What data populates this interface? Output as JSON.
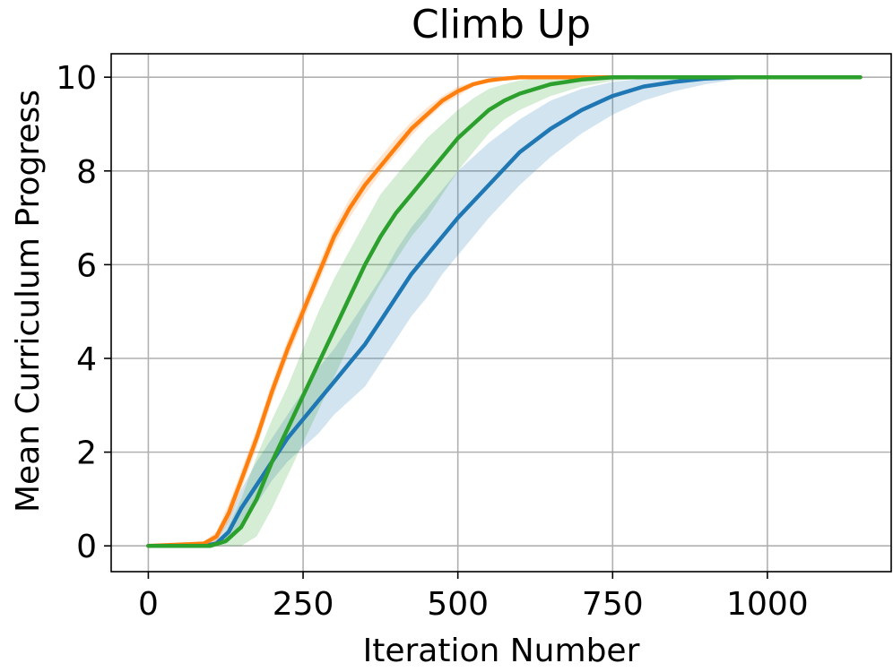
{
  "chart_data": {
    "type": "line",
    "title": "Climb Up",
    "xlabel": "Iteration Number",
    "ylabel": "Mean Curriculum Progress",
    "xlim": [
      -60,
      1200
    ],
    "ylim": [
      -0.55,
      10.5
    ],
    "xticks": [
      0,
      250,
      500,
      750,
      1000
    ],
    "yticks": [
      0,
      2,
      4,
      6,
      8,
      10
    ],
    "grid": true,
    "legend": "none",
    "series": [
      {
        "color": "#1f77b4",
        "x": [
          0,
          90,
          110,
          130,
          150,
          175,
          200,
          225,
          250,
          275,
          300,
          325,
          350,
          375,
          400,
          425,
          450,
          475,
          500,
          550,
          600,
          650,
          700,
          750,
          800,
          850,
          900,
          950,
          1000,
          1050,
          1100,
          1150
        ],
        "y": [
          0,
          0,
          0.05,
          0.3,
          0.8,
          1.3,
          1.8,
          2.3,
          2.7,
          3.1,
          3.5,
          3.9,
          4.3,
          4.8,
          5.3,
          5.8,
          6.2,
          6.6,
          7.0,
          7.7,
          8.4,
          8.9,
          9.3,
          9.6,
          9.8,
          9.9,
          9.97,
          10,
          10,
          10,
          10,
          10
        ],
        "lower": [
          0,
          0,
          0,
          0.1,
          0.4,
          0.9,
          1.4,
          1.8,
          2.1,
          2.4,
          2.8,
          3.1,
          3.4,
          3.9,
          4.4,
          4.9,
          5.3,
          5.8,
          6.2,
          7.0,
          7.7,
          8.3,
          8.8,
          9.2,
          9.5,
          9.7,
          9.85,
          9.95,
          10,
          10,
          10,
          10
        ],
        "upper": [
          0,
          0,
          0.15,
          0.6,
          1.2,
          1.8,
          2.3,
          2.8,
          3.3,
          3.8,
          4.2,
          4.7,
          5.2,
          5.7,
          6.3,
          6.8,
          7.2,
          7.6,
          8.0,
          8.6,
          9.1,
          9.5,
          9.75,
          9.9,
          9.97,
          10,
          10,
          10,
          10,
          10,
          10,
          10
        ]
      },
      {
        "color": "#ff7f0e",
        "x": [
          0,
          90,
          110,
          130,
          150,
          175,
          200,
          225,
          250,
          275,
          300,
          325,
          350,
          375,
          400,
          425,
          450,
          475,
          500,
          525,
          550,
          575,
          600,
          650,
          700,
          750,
          800,
          850,
          900,
          950,
          1000,
          1050,
          1100,
          1150
        ],
        "y": [
          0,
          0.05,
          0.2,
          0.7,
          1.4,
          2.3,
          3.3,
          4.2,
          5.0,
          5.8,
          6.6,
          7.2,
          7.7,
          8.1,
          8.5,
          8.9,
          9.2,
          9.5,
          9.7,
          9.85,
          9.93,
          9.97,
          10,
          10,
          10,
          10,
          10,
          10,
          10,
          10,
          10,
          10,
          10,
          10
        ],
        "lower": [
          0,
          0,
          0.1,
          0.5,
          1.2,
          2.1,
          3.1,
          4.0,
          4.8,
          5.6,
          6.4,
          7.0,
          7.5,
          7.95,
          8.35,
          8.75,
          9.1,
          9.4,
          9.6,
          9.8,
          9.9,
          9.96,
          10,
          10,
          10,
          10,
          10,
          10,
          10,
          10,
          10,
          10,
          10,
          10
        ],
        "upper": [
          0,
          0.1,
          0.3,
          0.9,
          1.6,
          2.5,
          3.5,
          4.4,
          5.2,
          6.0,
          6.8,
          7.4,
          7.9,
          8.3,
          8.7,
          9.05,
          9.35,
          9.6,
          9.8,
          9.9,
          9.96,
          10,
          10,
          10,
          10,
          10,
          10,
          10,
          10,
          10,
          10,
          10,
          10,
          10
        ]
      },
      {
        "color": "#2ca02c",
        "x": [
          0,
          100,
          125,
          150,
          175,
          200,
          225,
          250,
          275,
          300,
          325,
          350,
          375,
          400,
          425,
          450,
          475,
          500,
          525,
          550,
          575,
          600,
          650,
          700,
          750,
          800,
          850,
          900,
          950,
          1000,
          1050,
          1100,
          1150
        ],
        "y": [
          0,
          0,
          0.1,
          0.4,
          1.0,
          1.8,
          2.5,
          3.2,
          3.9,
          4.6,
          5.3,
          6.0,
          6.6,
          7.1,
          7.5,
          7.9,
          8.3,
          8.7,
          9.0,
          9.3,
          9.5,
          9.65,
          9.85,
          9.95,
          10,
          10,
          10,
          10,
          10,
          10,
          10,
          10,
          10
        ],
        "lower": [
          0,
          0,
          0,
          0,
          0.2,
          0.8,
          1.5,
          2.2,
          2.9,
          3.6,
          4.3,
          5.0,
          5.6,
          6.1,
          6.6,
          7.0,
          7.5,
          8.0,
          8.4,
          8.8,
          9.1,
          9.3,
          9.6,
          9.8,
          9.92,
          9.98,
          10,
          10,
          10,
          10,
          10,
          10,
          10
        ],
        "upper": [
          0,
          0,
          0.3,
          1.0,
          1.9,
          2.7,
          3.4,
          4.2,
          5.0,
          5.7,
          6.3,
          6.9,
          7.5,
          7.9,
          8.3,
          8.7,
          9.0,
          9.3,
          9.55,
          9.75,
          9.85,
          9.93,
          10,
          10,
          10,
          10,
          10,
          10,
          10,
          10,
          10,
          10,
          10
        ]
      }
    ]
  }
}
